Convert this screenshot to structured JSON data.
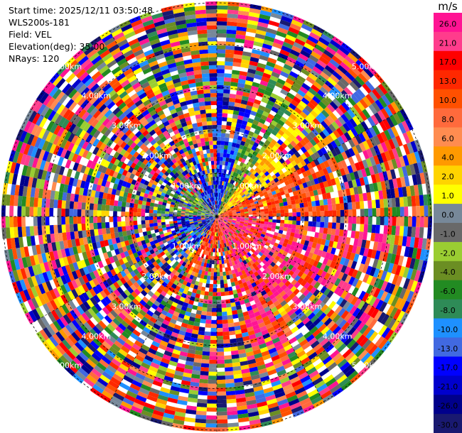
{
  "header": {
    "start_time": "Start time: 2025/12/11 03:50:48",
    "instrument": "WLS200s-181",
    "field": "Field: VEL",
    "elevation": "Elevation(deg): 35.00",
    "nrays": "NRays: 120"
  },
  "colorbar": {
    "unit": "m/s",
    "ticks": [
      "26.0",
      "21.0",
      "17.0",
      "13.0",
      "10.0",
      "8.0",
      "6.0",
      "4.0",
      "2.0",
      "1.0",
      "0.0",
      "-1.0",
      "-2.0",
      "-4.0",
      "-6.0",
      "-8.0",
      "-10.0",
      "-13.0",
      "-17.0",
      "-21.0",
      "-26.0",
      "-30.0"
    ],
    "colors": [
      "#ff1493",
      "#ff3c8c",
      "#ff0000",
      "#ff2800",
      "#ff5000",
      "#ff6a3c",
      "#ff8c50",
      "#ff9900",
      "#ffd400",
      "#ffff00",
      "#778899",
      "#696969",
      "#9acd32",
      "#6b8e23",
      "#228b22",
      "#2e8b57",
      "#1e90ff",
      "#4169e1",
      "#0000ff",
      "#0000cd",
      "#00008b",
      "#191970"
    ]
  },
  "chart_data": {
    "type": "ppi",
    "field": "VEL",
    "units": "m/s",
    "n_rays": 120,
    "range_rings_km": [
      "1.00km",
      "2.00km",
      "3.00km",
      "4.00km",
      "5.00km"
    ],
    "colorbar_range": [
      -30.0,
      26.0
    ]
  }
}
